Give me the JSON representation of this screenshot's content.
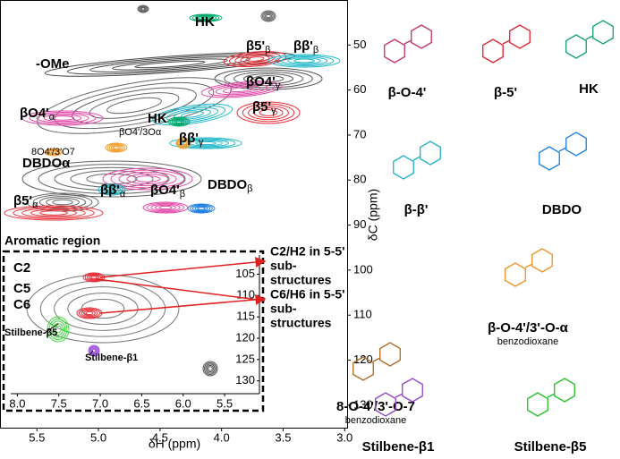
{
  "chart_data": {
    "type": "contour",
    "x_label": "δH (ppm)",
    "y_label": "δC (ppm)",
    "xlim": [
      5.8,
      2.98
    ],
    "ylim": [
      40,
      135
    ],
    "xticks": [
      5.5,
      {
        "value": 5,
        "label": "5.0"
      },
      4.5,
      {
        "value": 4,
        "label": "4.0"
      },
      3.5,
      {
        "value": 3,
        "label": "3.0"
      }
    ],
    "yticks": [
      50,
      60,
      70,
      80,
      90,
      100,
      110,
      120,
      130
    ],
    "annotations": [
      {
        "text": "HK"
      },
      {
        "text": "β5'",
        "sub": "β"
      },
      {
        "text": "ββ'",
        "sub": "β"
      },
      {
        "text": "-OMe"
      },
      {
        "text": "βO4'",
        "sub": "γ"
      },
      {
        "text": "HK"
      },
      {
        "text": "β5'",
        "sub": "γ"
      },
      {
        "text": "βO4'",
        "sub": "α"
      },
      {
        "text": "βO4'/3Oα"
      },
      {
        "text": "ββ'",
        "sub": "γ"
      },
      {
        "text": "8O4'/3'O7"
      },
      {
        "text": "DBDOα"
      },
      {
        "text": "ββ'",
        "sub": "α"
      },
      {
        "text": "βO4'",
        "sub": "β"
      },
      {
        "text": "DBDO",
        "sub": "β"
      },
      {
        "text": "β5'",
        "sub": "α"
      }
    ],
    "inset": {
      "title": "Aromatic region",
      "xlim": [
        8.08,
        5.08
      ],
      "ylim": [
        100.5,
        133
      ],
      "xticks": [
        {
          "value": 8,
          "label": "8.0"
        },
        7.5,
        {
          "value": 7,
          "label": "7.0"
        },
        6.5,
        {
          "value": 6,
          "label": "6.0"
        },
        5.5
      ],
      "yticks": [
        105,
        110,
        115,
        120,
        125,
        130
      ],
      "labels": [
        "C2",
        "C5",
        "C6",
        "Stilbene-β5",
        "Stilbene-β1"
      ]
    },
    "callouts": [
      [
        "C2/H2 in 5-5'",
        "sub-",
        "structures"
      ],
      [
        "C6/H6 in 5-5'",
        "sub-",
        "structures"
      ]
    ]
  },
  "structures": [
    {
      "name": "β-O-4'",
      "color": "#c0306a"
    },
    {
      "name": "β-5'",
      "color": "#e02030"
    },
    {
      "name": "HK",
      "color": "#10a070"
    },
    {
      "name": "β-β'",
      "color": "#20b0c8"
    },
    {
      "name": "DBDO",
      "color": "#1e7fe0"
    },
    {
      "name": "β-O-4'/3'-O-α",
      "note": "benzodioxane",
      "color": "#f09020"
    },
    {
      "name": "8-O-4'/3'-O-7",
      "note": "benzodioxane",
      "color": "#b06820"
    },
    {
      "name": "Stilbene-β1",
      "color": "#9040d0"
    },
    {
      "name": "Stilbene-β5",
      "color": "#20c020"
    }
  ]
}
